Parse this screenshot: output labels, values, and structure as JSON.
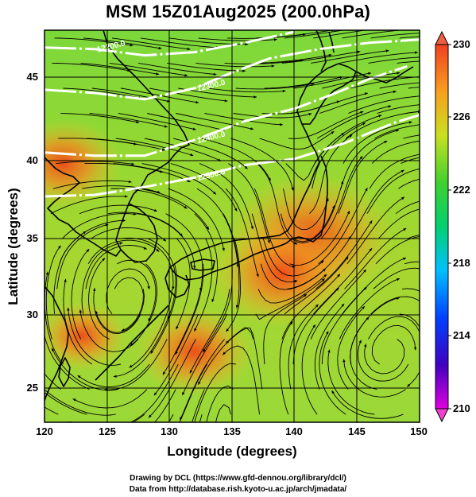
{
  "title": "MSM 15Z01Aug2025 (200.0hPa)",
  "xlabel": "Longitude (degrees)",
  "ylabel": "Latitude  (degrees)",
  "x_ticks": [
    "120",
    "125",
    "130",
    "135",
    "140",
    "145",
    "150"
  ],
  "y_ticks": [
    "25",
    "30",
    "35",
    "40",
    "45"
  ],
  "colorbar_ticks": [
    "210",
    "214",
    "218",
    "222",
    "226",
    "230"
  ],
  "contour_labels": [
    "12200.0",
    "12300.0",
    "12400.0",
    "12500.0"
  ],
  "credits": {
    "line1": "Drawing by DCL (https://www.gfd-dennou.org/library/dcl/)",
    "line2": "Data from http://database.rish.kyoto-u.ac.jp/arch/jmadata/"
  },
  "colors": {
    "temp_low": "#cc00cc",
    "temp_mid": "#20d040",
    "temp_high": "#e03010",
    "background_field": "#8ed63a",
    "contour": "#ffffff",
    "coastline": "#000000"
  },
  "map_data": {
    "lon_range": [
      120,
      150
    ],
    "lat_range": [
      23,
      48
    ],
    "colorbar_range": [
      210,
      230
    ],
    "warm_regions": [
      {
        "lon": 141.3,
        "lat": 34.8,
        "value": 229
      },
      {
        "lon": 139.0,
        "lat": 32.5,
        "value": 228
      },
      {
        "lon": 132.0,
        "lat": 27.5,
        "value": 227
      },
      {
        "lon": 121.5,
        "lat": 39.5,
        "value": 227
      },
      {
        "lon": 123.0,
        "lat": 28.5,
        "value": 226
      }
    ],
    "contours": [
      {
        "label": "12200.0",
        "points": [
          [
            120,
            46.9
          ],
          [
            124,
            46.8
          ],
          [
            128,
            46.4
          ],
          [
            132,
            46.6
          ],
          [
            136,
            47.2
          ],
          [
            140,
            47.9
          ]
        ]
      },
      {
        "label": "12300.0",
        "points": [
          [
            120,
            44.2
          ],
          [
            124,
            44.0
          ],
          [
            128,
            43.6
          ],
          [
            132,
            44.3
          ],
          [
            135,
            45.3
          ],
          [
            138,
            46.2
          ],
          [
            142,
            46.8
          ],
          [
            146,
            47.2
          ],
          [
            150,
            47.4
          ]
        ]
      },
      {
        "label": "12400.0",
        "points": [
          [
            120,
            40.2
          ],
          [
            124,
            40.0
          ],
          [
            128,
            40.0
          ],
          [
            132,
            41.0
          ],
          [
            136,
            42.2
          ],
          [
            140,
            43.0
          ],
          [
            143,
            43.9
          ],
          [
            146,
            44.9
          ],
          [
            149,
            45.7
          ]
        ]
      },
      {
        "label": "12500.0",
        "points": [
          [
            120,
            37.4
          ],
          [
            124,
            37.5
          ],
          [
            128,
            38.0
          ],
          [
            132,
            38.6
          ],
          [
            136,
            39.4
          ],
          [
            140,
            39.8
          ],
          [
            144,
            40.8
          ],
          [
            148,
            42.1
          ],
          [
            150,
            42.6
          ]
        ]
      }
    ]
  }
}
